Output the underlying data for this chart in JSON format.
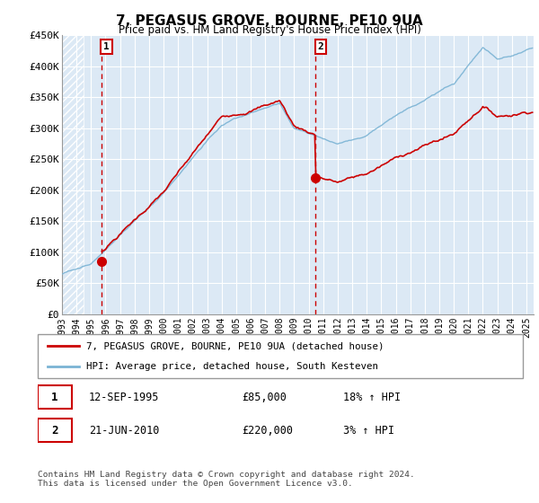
{
  "title": "7, PEGASUS GROVE, BOURNE, PE10 9UA",
  "subtitle": "Price paid vs. HM Land Registry's House Price Index (HPI)",
  "legend_line1": "7, PEGASUS GROVE, BOURNE, PE10 9UA (detached house)",
  "legend_line2": "HPI: Average price, detached house, South Kesteven",
  "annotation1_label": "1",
  "annotation1_date": "12-SEP-1995",
  "annotation1_price": "£85,000",
  "annotation1_hpi": "18% ↑ HPI",
  "annotation2_label": "2",
  "annotation2_date": "21-JUN-2010",
  "annotation2_price": "£220,000",
  "annotation2_hpi": "3% ↑ HPI",
  "footer": "Contains HM Land Registry data © Crown copyright and database right 2024.\nThis data is licensed under the Open Government Licence v3.0.",
  "hpi_color": "#7ab3d4",
  "price_color": "#cc0000",
  "marker_color": "#cc0000",
  "vline_color": "#cc0000",
  "bg_color": "#dce9f5",
  "hatch_color": "#c5d8ea",
  "ylim": [
    0,
    450000
  ],
  "yticks": [
    0,
    50000,
    100000,
    150000,
    200000,
    250000,
    300000,
    350000,
    400000,
    450000
  ],
  "ytick_labels": [
    "£0",
    "£50K",
    "£100K",
    "£150K",
    "£200K",
    "£250K",
    "£300K",
    "£350K",
    "£400K",
    "£450K"
  ],
  "purchase1_x": 1995.7,
  "purchase1_y": 85000,
  "purchase2_x": 2010.47,
  "purchase2_y": 220000,
  "xmin": 1993,
  "xmax": 2025.5,
  "xticks": [
    1993,
    1994,
    1995,
    1996,
    1997,
    1998,
    1999,
    2000,
    2001,
    2002,
    2003,
    2004,
    2005,
    2006,
    2007,
    2008,
    2009,
    2010,
    2011,
    2012,
    2013,
    2014,
    2015,
    2016,
    2017,
    2018,
    2019,
    2020,
    2021,
    2022,
    2023,
    2024,
    2025
  ]
}
